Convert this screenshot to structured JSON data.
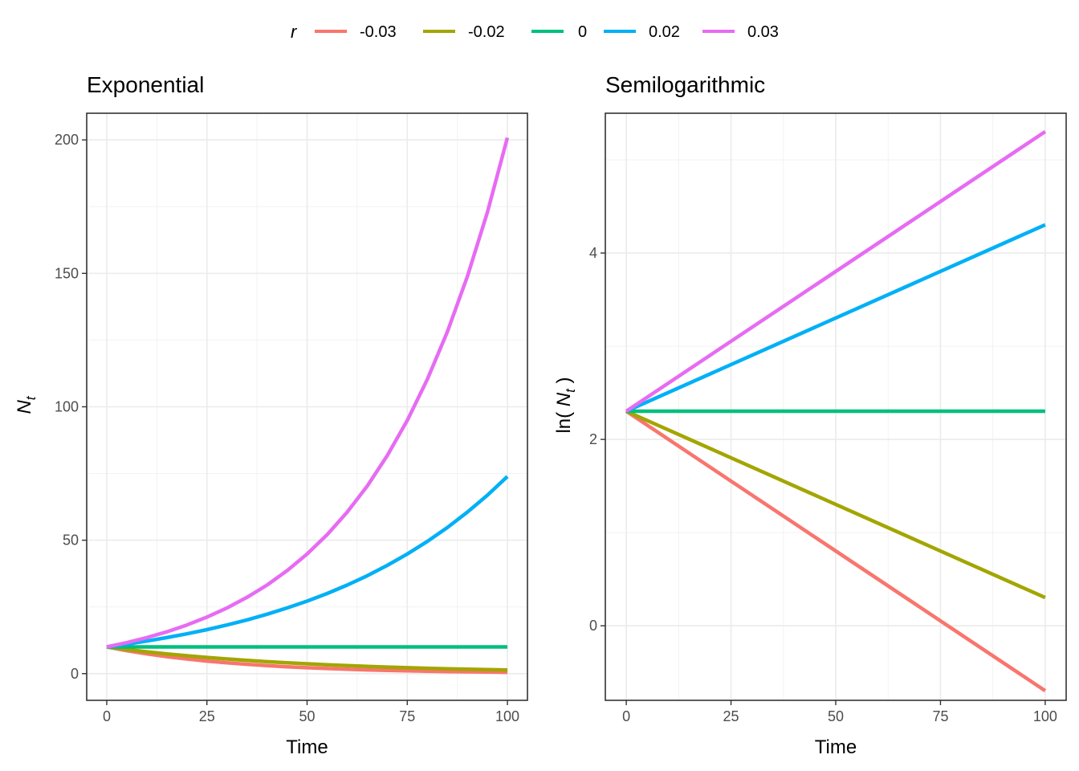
{
  "legend": {
    "title": "r",
    "entries": [
      {
        "label": "-0.03",
        "color": "#F8766D"
      },
      {
        "label": "-0.02",
        "color": "#A3A500"
      },
      {
        "label": "0",
        "color": "#00BF7D"
      },
      {
        "label": "0.02",
        "color": "#00B0F6"
      },
      {
        "label": "0.03",
        "color": "#E76BF3"
      }
    ]
  },
  "chart_data": [
    {
      "type": "line",
      "title": "Exponential",
      "xlabel": "Time",
      "ylabel_main": "N",
      "ylabel_sub": "t",
      "xlim": [
        -5,
        105
      ],
      "ylim": [
        -10,
        210
      ],
      "xticks": [
        0,
        25,
        50,
        75,
        100
      ],
      "xtick_labels": [
        "0",
        "25",
        "50",
        "75",
        "100"
      ],
      "yticks": [
        0,
        50,
        100,
        150,
        200
      ],
      "ytick_labels": [
        "0",
        "50",
        "100",
        "150",
        "200"
      ],
      "grid": true,
      "x": [
        0,
        5,
        10,
        15,
        20,
        25,
        30,
        35,
        40,
        45,
        50,
        55,
        60,
        65,
        70,
        75,
        80,
        85,
        90,
        95,
        100
      ],
      "series": [
        {
          "name": "-0.03",
          "values": [
            10,
            8.61,
            7.41,
            6.38,
            5.49,
            4.72,
            4.07,
            3.5,
            3.01,
            2.59,
            2.23,
            1.92,
            1.65,
            1.42,
            1.22,
            1.05,
            0.91,
            0.78,
            0.67,
            0.58,
            0.5
          ]
        },
        {
          "name": "-0.02",
          "values": [
            10,
            9.05,
            8.19,
            7.41,
            6.7,
            6.07,
            5.49,
            4.97,
            4.49,
            4.07,
            3.68,
            3.33,
            3.01,
            2.73,
            2.47,
            2.23,
            2.02,
            1.83,
            1.65,
            1.5,
            1.35
          ]
        },
        {
          "name": "0",
          "values": [
            10,
            10,
            10,
            10,
            10,
            10,
            10,
            10,
            10,
            10,
            10,
            10,
            10,
            10,
            10,
            10,
            10,
            10,
            10,
            10,
            10
          ]
        },
        {
          "name": "0.02",
          "values": [
            10,
            11.05,
            12.21,
            13.5,
            14.92,
            16.49,
            18.22,
            20.14,
            22.26,
            24.6,
            27.18,
            30.04,
            33.2,
            36.69,
            40.55,
            44.82,
            49.53,
            54.74,
            60.5,
            66.86,
            73.89
          ]
        },
        {
          "name": "0.03",
          "values": [
            10,
            11.62,
            13.5,
            15.68,
            18.22,
            21.17,
            24.6,
            28.58,
            33.2,
            38.57,
            44.82,
            52.07,
            60.5,
            70.29,
            81.66,
            94.88,
            110.23,
            128.07,
            148.8,
            172.88,
            200.86
          ]
        }
      ]
    },
    {
      "type": "line",
      "title": "Semilogarithmic",
      "xlabel": "Time",
      "ylabel_pre": "ln( ",
      "ylabel_main": "N",
      "ylabel_sub": "t",
      "ylabel_post": " )",
      "xlim": [
        -5,
        105
      ],
      "ylim": [
        -0.8,
        5.5
      ],
      "xticks": [
        0,
        25,
        50,
        75,
        100
      ],
      "xtick_labels": [
        "0",
        "25",
        "50",
        "75",
        "100"
      ],
      "yticks": [
        0,
        2,
        4
      ],
      "ytick_labels": [
        "0",
        "2",
        "4"
      ],
      "grid": true,
      "x": [
        0,
        100
      ],
      "series": [
        {
          "name": "-0.03",
          "values": [
            2.3026,
            -0.6974
          ]
        },
        {
          "name": "-0.02",
          "values": [
            2.3026,
            0.3026
          ]
        },
        {
          "name": "0",
          "values": [
            2.3026,
            2.3026
          ]
        },
        {
          "name": "0.02",
          "values": [
            2.3026,
            4.3026
          ]
        },
        {
          "name": "0.03",
          "values": [
            2.3026,
            5.3026
          ]
        }
      ]
    }
  ]
}
